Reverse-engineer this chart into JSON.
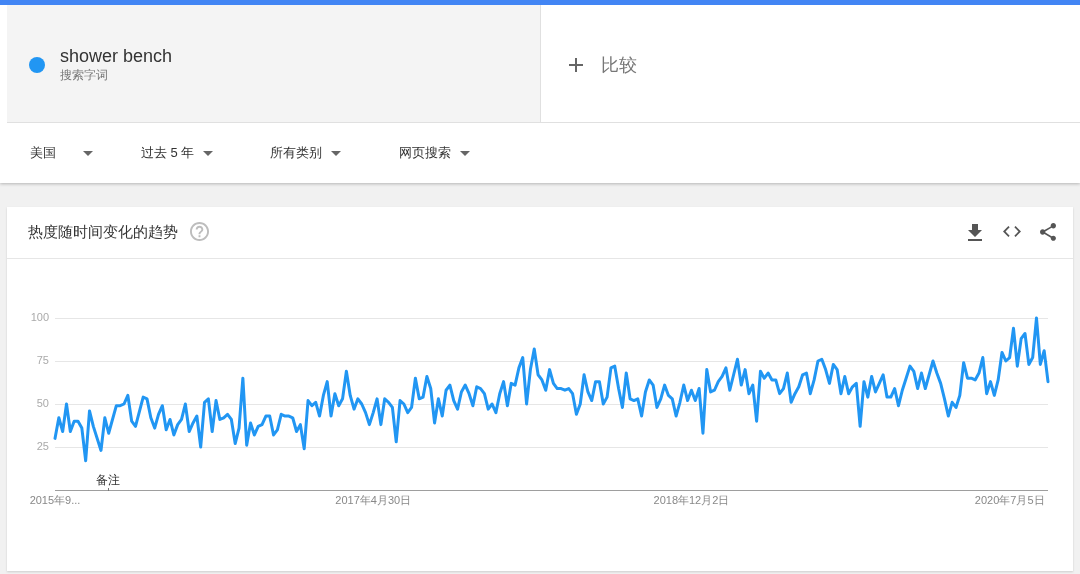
{
  "chart_data": {
    "type": "line",
    "title": "热度随时间变化的趋势",
    "legend": "top left",
    "grid": "y",
    "xlim": [
      "2015-09-27",
      "2020-09-13"
    ],
    "xticks": [
      {
        "value": "2015-09-27",
        "label": "2015年9..."
      },
      {
        "value": "2017-04-30",
        "label": "2017年4月30日"
      },
      {
        "value": "2018-12-02",
        "label": "2018年12月2日"
      },
      {
        "value": "2020-07-05",
        "label": "2020年7月5日"
      }
    ],
    "ylim": [
      0,
      100
    ],
    "yticks": [
      {
        "value": 0,
        "label": null
      },
      25,
      50,
      75,
      100
    ],
    "annotations": [
      "搜索字词",
      "比较",
      "美国",
      "过去 5 年",
      "所有类别",
      "网页搜索",
      "备注"
    ],
    "x": [
      "2015-09-27",
      "2015-10-04",
      "2015-10-11",
      "2015-10-18",
      "2015-10-25",
      "2015-11-01",
      "2015-11-08",
      "2015-11-15",
      "2015-11-22",
      "2015-11-29",
      "2015-12-06",
      "2015-12-20",
      "2015-12-27",
      "2016-01-03",
      "2016-01-17",
      "2016-01-24",
      "2016-01-31",
      "2016-02-07",
      "2016-02-14",
      "2016-02-21",
      "2016-03-06",
      "2016-03-13",
      "2016-03-20",
      "2016-03-27",
      "2016-04-03",
      "2016-04-10",
      "2016-04-17",
      "2016-04-24",
      "2016-05-01",
      "2016-05-08",
      "2016-05-15",
      "2016-05-22",
      "2016-05-29",
      "2016-06-05",
      "2016-06-12",
      "2016-06-19",
      "2016-06-26",
      "2016-07-03",
      "2016-07-10",
      "2016-07-17",
      "2016-07-24",
      "2016-07-31",
      "2016-08-07",
      "2016-08-14",
      "2016-08-21",
      "2016-08-28",
      "2016-09-04",
      "2016-09-11",
      "2016-09-18",
      "2016-09-25",
      "2016-10-02",
      "2016-10-09",
      "2016-10-16",
      "2016-10-23",
      "2016-10-30",
      "2016-11-06",
      "2016-11-13",
      "2016-11-20",
      "2016-11-27",
      "2016-12-04",
      "2016-12-11",
      "2016-12-18",
      "2016-12-25",
      "2017-01-01",
      "2017-01-08",
      "2017-01-15",
      "2017-01-22",
      "2017-01-29",
      "2017-02-05",
      "2017-02-12",
      "2017-02-19",
      "2017-02-26",
      "2017-03-05",
      "2017-03-12",
      "2017-03-19",
      "2017-03-26",
      "2017-04-02",
      "2017-04-09",
      "2017-04-16",
      "2017-04-23",
      "2017-04-30",
      "2017-05-07",
      "2017-05-14",
      "2017-05-21",
      "2017-05-28",
      "2017-06-04",
      "2017-06-11",
      "2017-06-18",
      "2017-06-25",
      "2017-07-02",
      "2017-07-09",
      "2017-07-16",
      "2017-07-23",
      "2017-07-30",
      "2017-08-06",
      "2017-08-13",
      "2017-08-20",
      "2017-08-27",
      "2017-09-03",
      "2017-09-10",
      "2017-09-17",
      "2017-09-24",
      "2017-10-01",
      "2017-10-08",
      "2017-10-15",
      "2017-10-22",
      "2017-10-29",
      "2017-11-05",
      "2017-11-12",
      "2017-11-19",
      "2017-11-26",
      "2017-12-03",
      "2017-12-10",
      "2017-12-17",
      "2017-12-24",
      "2017-12-31",
      "2018-01-07",
      "2018-01-14",
      "2018-01-21",
      "2018-01-28",
      "2018-02-04",
      "2018-02-11",
      "2018-02-18",
      "2018-02-25",
      "2018-03-04",
      "2018-03-11",
      "2018-03-18",
      "2018-03-25",
      "2018-04-01",
      "2018-04-08",
      "2018-04-15",
      "2018-04-22",
      "2018-04-29",
      "2018-05-06",
      "2018-05-13",
      "2018-05-20",
      "2018-05-27",
      "2018-06-03",
      "2018-06-10",
      "2018-06-17",
      "2018-06-24",
      "2018-07-01",
      "2018-07-08",
      "2018-07-15",
      "2018-07-22",
      "2018-07-29",
      "2018-08-05",
      "2018-08-12",
      "2018-08-19",
      "2018-08-26",
      "2018-09-02",
      "2018-09-09",
      "2018-09-16",
      "2018-09-23",
      "2018-09-30",
      "2018-10-07",
      "2018-10-14",
      "2018-10-21",
      "2018-10-28",
      "2018-11-04",
      "2018-11-11",
      "2018-11-18",
      "2018-11-25",
      "2018-12-02",
      "2018-12-09",
      "2018-12-16",
      "2018-12-23",
      "2018-12-30",
      "2019-01-06",
      "2019-01-13",
      "2019-01-20",
      "2019-01-27",
      "2019-02-03",
      "2019-02-10",
      "2019-02-17",
      "2019-02-24",
      "2019-03-03",
      "2019-03-10",
      "2019-03-17",
      "2019-03-24",
      "2019-03-31",
      "2019-04-07",
      "2019-04-14",
      "2019-04-21",
      "2019-04-28",
      "2019-05-05",
      "2019-05-12",
      "2019-05-19",
      "2019-05-26",
      "2019-06-02",
      "2019-06-09",
      "2019-06-16",
      "2019-06-23",
      "2019-06-30",
      "2019-07-07",
      "2019-07-14",
      "2019-07-21",
      "2019-07-28",
      "2019-08-04",
      "2019-08-11",
      "2019-08-18",
      "2019-08-25",
      "2019-09-01",
      "2019-09-08",
      "2019-09-15",
      "2019-09-22",
      "2019-09-29",
      "2019-10-06",
      "2019-10-13",
      "2019-10-20",
      "2019-10-27",
      "2019-11-03",
      "2019-11-10",
      "2019-11-17",
      "2019-11-24",
      "2019-12-01",
      "2019-12-08",
      "2019-12-15",
      "2019-12-22",
      "2019-12-29",
      "2020-01-05",
      "2020-01-12",
      "2020-01-19",
      "2020-01-26",
      "2020-02-02",
      "2020-02-09",
      "2020-02-16",
      "2020-02-23",
      "2020-03-01",
      "2020-03-08",
      "2020-03-15",
      "2020-03-22",
      "2020-03-29",
      "2020-04-05",
      "2020-04-12",
      "2020-04-19",
      "2020-04-26",
      "2020-05-03",
      "2020-05-10",
      "2020-05-17",
      "2020-05-24",
      "2020-05-31",
      "2020-06-07",
      "2020-06-14",
      "2020-06-21",
      "2020-06-28",
      "2020-07-05",
      "2020-07-12",
      "2020-07-19",
      "2020-07-26",
      "2020-08-02",
      "2020-08-09",
      "2020-08-16",
      "2020-08-23",
      "2020-08-30",
      "2020-09-06",
      "2020-09-13"
    ],
    "series": [
      {
        "name": "shower bench",
        "color": "#2196f3",
        "values": [
          30,
          42,
          34,
          50,
          34,
          40,
          40,
          36,
          17,
          46,
          37,
          23,
          42,
          33,
          49,
          49,
          50,
          55,
          40,
          37,
          54,
          53,
          42,
          36,
          44,
          49,
          35,
          41,
          32,
          38,
          41,
          50,
          34,
          39,
          43,
          25,
          51,
          53,
          34,
          52,
          41,
          42,
          44,
          41,
          27,
          36,
          65,
          26,
          39,
          32,
          37,
          38,
          43,
          43,
          32,
          35,
          44,
          43,
          43,
          42,
          34,
          38,
          24,
          52,
          49,
          51,
          43,
          55,
          63,
          43,
          56,
          49,
          53,
          69,
          55,
          47,
          53,
          50,
          45,
          38,
          45,
          53,
          38,
          53,
          51,
          48,
          28,
          52,
          50,
          45,
          48,
          65,
          53,
          54,
          66,
          59,
          39,
          53,
          43,
          58,
          61,
          52,
          47,
          57,
          61,
          56,
          49,
          60,
          59,
          56,
          47,
          50,
          45,
          56,
          63,
          49,
          62,
          61,
          71,
          77,
          50,
          70,
          82,
          67,
          64,
          58,
          70,
          62,
          59,
          59,
          58,
          59,
          56,
          44,
          50,
          67,
          57,
          52,
          63,
          63,
          50,
          54,
          71,
          72,
          59,
          48,
          68,
          53,
          52,
          53,
          43,
          57,
          64,
          61,
          48,
          53,
          61,
          55,
          53,
          43,
          51,
          61,
          52,
          58,
          52,
          59,
          33,
          70,
          57,
          58,
          63,
          66,
          71,
          58,
          67,
          76,
          61,
          70,
          56,
          61,
          40,
          69,
          65,
          68,
          64,
          64,
          56,
          59,
          68,
          51,
          56,
          60,
          67,
          68,
          56,
          64,
          75,
          76,
          70,
          62,
          73,
          70,
          56,
          66,
          56,
          60,
          62,
          37,
          63,
          54,
          66,
          57,
          62,
          67,
          54,
          54,
          59,
          49,
          58,
          65,
          72,
          69,
          59,
          68,
          59,
          67,
          75,
          68,
          62,
          53,
          43,
          51,
          48,
          55,
          74,
          65,
          65,
          64,
          68,
          77,
          56,
          63,
          55,
          64,
          80,
          75,
          77,
          94,
          72,
          88,
          91,
          73,
          77,
          100,
          73,
          81,
          63
        ]
      }
    ]
  }
}
